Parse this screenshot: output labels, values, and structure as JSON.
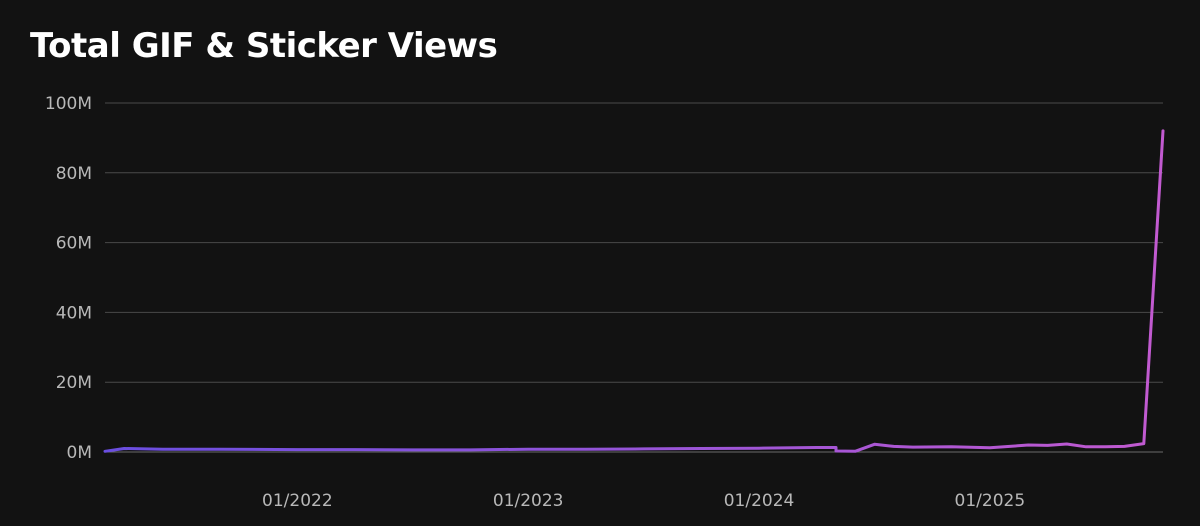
{
  "chart_data": {
    "type": "line",
    "title": "Total GIF & Sticker Views",
    "xlabel": "",
    "ylabel": "",
    "x_range": [
      "2021-03",
      "2025-10"
    ],
    "ylim": [
      0,
      100000000
    ],
    "y_ticks": [
      {
        "value": 0,
        "label": "0M"
      },
      {
        "value": 20000000,
        "label": "20M"
      },
      {
        "value": 40000000,
        "label": "40M"
      },
      {
        "value": 60000000,
        "label": "60M"
      },
      {
        "value": 80000000,
        "label": "80M"
      },
      {
        "value": 100000000,
        "label": "100M"
      }
    ],
    "x_ticks": [
      {
        "value": "2022-01",
        "label": "01/2022"
      },
      {
        "value": "2023-01",
        "label": "01/2023"
      },
      {
        "value": "2024-01",
        "label": "01/2024"
      },
      {
        "value": "2025-01",
        "label": "01/2025"
      }
    ],
    "grid": true,
    "legend": "none",
    "line_gradient": [
      "#6a4ee0",
      "#c25ad0"
    ],
    "series": [
      {
        "points": [
          {
            "x": "2021-03",
            "y": 200000
          },
          {
            "x": "2021-04",
            "y": 1000000
          },
          {
            "x": "2021-06",
            "y": 800000
          },
          {
            "x": "2021-09",
            "y": 800000
          },
          {
            "x": "2022-01",
            "y": 700000
          },
          {
            "x": "2022-04",
            "y": 700000
          },
          {
            "x": "2022-07",
            "y": 600000
          },
          {
            "x": "2022-10",
            "y": 600000
          },
          {
            "x": "2023-01",
            "y": 800000
          },
          {
            "x": "2023-04",
            "y": 800000
          },
          {
            "x": "2023-07",
            "y": 900000
          },
          {
            "x": "2023-10",
            "y": 1000000
          },
          {
            "x": "2024-01",
            "y": 1100000
          },
          {
            "x": "2024-04",
            "y": 1300000
          },
          {
            "x": "2024-05",
            "y": 1300000
          },
          {
            "x": "2024-05",
            "y": 300000
          },
          {
            "x": "2024-06",
            "y": 200000
          },
          {
            "x": "2024-07",
            "y": 2200000
          },
          {
            "x": "2024-08",
            "y": 1600000
          },
          {
            "x": "2024-09",
            "y": 1400000
          },
          {
            "x": "2024-11",
            "y": 1500000
          },
          {
            "x": "2025-01",
            "y": 1200000
          },
          {
            "x": "2025-03",
            "y": 2000000
          },
          {
            "x": "2025-04",
            "y": 1900000
          },
          {
            "x": "2025-05",
            "y": 2300000
          },
          {
            "x": "2025-06",
            "y": 1500000
          },
          {
            "x": "2025-07",
            "y": 1500000
          },
          {
            "x": "2025-08",
            "y": 1600000
          },
          {
            "x": "2025-09",
            "y": 2400000
          },
          {
            "x": "2025-10",
            "y": 92000000
          }
        ]
      }
    ]
  }
}
